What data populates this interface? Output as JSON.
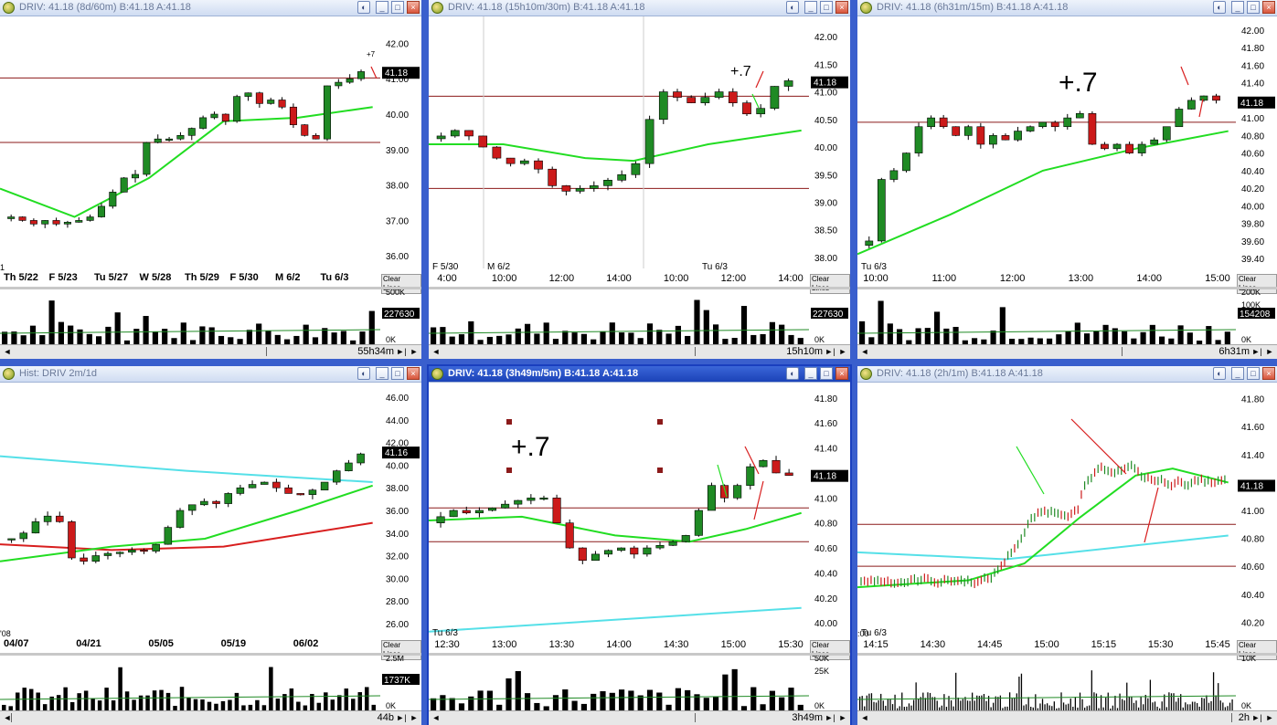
{
  "accent": "#3a5fcd",
  "colors": {
    "up": "#1f8a24",
    "down": "#cc1a1a",
    "ma_green": "#22dd22",
    "ma_cyan": "#55e0e8",
    "ma_red": "#d81e1e",
    "level": "#8b1a1a"
  },
  "clear_lines_label": "Clear Lines",
  "icons": {
    "app": "stock-cube-icon",
    "pin": "pin-icon",
    "min": "minimize-icon",
    "max": "maximize-icon",
    "close": "close-icon"
  },
  "windows": [
    {
      "title": "DRIV: 41.18 (8d/60m)  B:41.18  A:41.18",
      "active": false,
      "scroll_label": "55h34m",
      "price": {
        "ticks": [
          "42.00",
          "41.00",
          "40.00",
          "39.00",
          "38.00",
          "37.00",
          "36.00"
        ],
        "last": "41.18"
      },
      "xlabels": [
        "Th 5/22",
        "F  5/23",
        "Tu 5/27",
        "W  5/28",
        "Th 5/29",
        "F  5/30",
        "M  6/2",
        "Tu 6/3"
      ],
      "edge_labels": [
        "1"
      ],
      "volume": {
        "ticks": [
          "500K",
          "0K"
        ],
        "last": "227630"
      },
      "annotations": [
        "+7"
      ]
    },
    {
      "title": "DRIV: 41.18 (15h10m/30m)  B:41.18  A:41.18",
      "active": false,
      "scroll_label": "15h10m",
      "price": {
        "ticks": [
          "42.00",
          "41.50",
          "41.00",
          "40.50",
          "40.00",
          "39.50",
          "39.00",
          "38.50",
          "38.00"
        ],
        "last": "41.18"
      },
      "xlabels": [
        "F  5/30",
        "M  6/2",
        "Tu 6/3"
      ],
      "xlabels_time": [
        "4:00",
        "10:00",
        "12:00",
        "14:00",
        "10:00",
        "12:00",
        "14:00"
      ],
      "volume": {
        "ticks": [
          "0K"
        ],
        "last": "227630"
      },
      "annotations": [
        "+.7"
      ]
    },
    {
      "title": "DRIV: 41.18 (6h31m/15m)  B:41.18  A:41.18",
      "active": false,
      "scroll_label": "6h31m",
      "price": {
        "ticks": [
          "42.00",
          "41.80",
          "41.60",
          "41.40",
          "41.20",
          "41.00",
          "40.80",
          "40.60",
          "40.40",
          "40.20",
          "40.00",
          "39.80",
          "39.60",
          "39.40"
        ],
        "last": "41.18"
      },
      "xlabels": [
        "Tu 6/3"
      ],
      "xlabels_time": [
        "10:00",
        "11:00",
        "12:00",
        "13:00",
        "14:00",
        "15:00"
      ],
      "volume": {
        "ticks": [
          "200K",
          "100K",
          "0K"
        ],
        "last": "154208"
      },
      "annotations": [
        "+.7"
      ]
    },
    {
      "title": "Hist: DRIV 2m/1d",
      "active": false,
      "scroll_label": "44b",
      "price": {
        "ticks": [
          "46.00",
          "44.00",
          "42.00",
          "40.00",
          "38.00",
          "36.00",
          "34.00",
          "32.00",
          "30.00",
          "28.00",
          "26.00"
        ],
        "last": "41.16"
      },
      "xlabels": [
        "04/07",
        "04/21",
        "05/05",
        "05/19",
        "06/02"
      ],
      "edge_labels": [
        "'08"
      ],
      "volume": {
        "ticks": [
          "2.5M",
          "0K"
        ],
        "last": "1737K"
      },
      "annotations": []
    },
    {
      "title": "DRIV: 41.18 (3h49m/5m)  B:41.18  A:41.18",
      "active": true,
      "scroll_label": "3h49m",
      "price": {
        "ticks": [
          "41.80",
          "41.60",
          "41.40",
          "41.20",
          "41.00",
          "40.80",
          "40.60",
          "40.40",
          "40.20",
          "40.00"
        ],
        "last": "41.18"
      },
      "xlabels": [
        "Tu 6/3"
      ],
      "xlabels_time": [
        "12:30",
        "13:00",
        "13:30",
        "14:00",
        "14:30",
        "15:00",
        "15:30"
      ],
      "volume": {
        "ticks": [
          "50K",
          "25K",
          "0K"
        ],
        "last": ""
      },
      "annotations": [
        "+.7"
      ]
    },
    {
      "title": "DRIV: 41.18 (2h/1m)  B:41.18  A:41.18",
      "active": false,
      "scroll_label": "2h",
      "price": {
        "ticks": [
          "41.80",
          "41.60",
          "41.40",
          "41.20",
          "41.00",
          "40.80",
          "40.60",
          "40.40",
          "40.20"
        ],
        "last": "41.18"
      },
      "xlabels": [
        "Tu 6/3"
      ],
      "xlabels_time": [
        "14:15",
        "14:30",
        "14:45",
        "15:00",
        "15:15",
        "15:30",
        "15:45"
      ],
      "edge_labels": [
        ":00"
      ],
      "volume": {
        "ticks": [
          "10K",
          "0K"
        ],
        "last": ""
      },
      "annotations": []
    }
  ]
}
